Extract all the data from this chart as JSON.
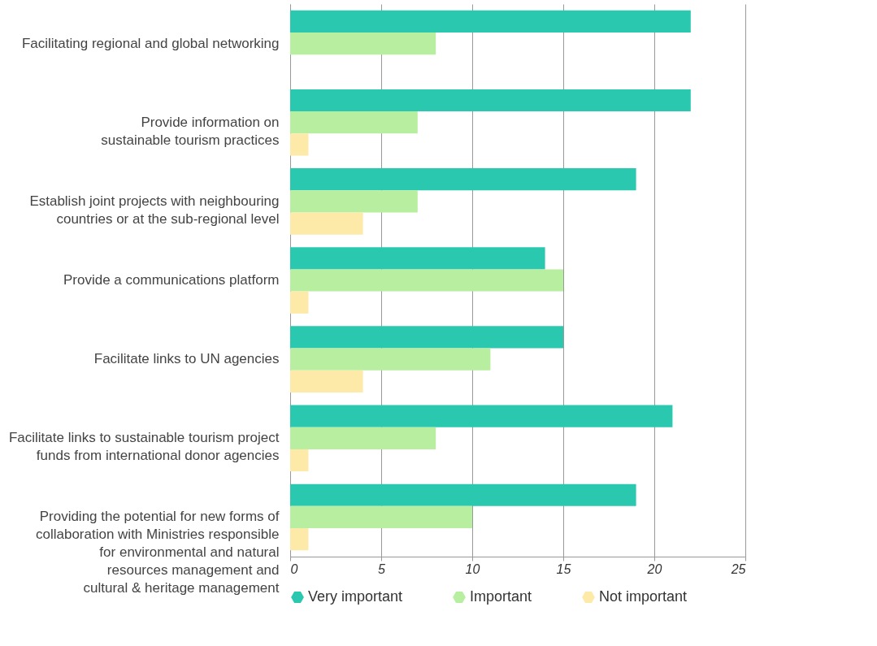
{
  "chart_data": {
    "type": "bar",
    "orientation": "horizontal",
    "categories": [
      "Facilitating regional and global networking",
      "Provide information on\nsustainable tourism practices",
      "Establish joint projects with neighbouring\ncountries or at the sub-regional level",
      "Provide a communications platform",
      "Facilitate links to UN agencies",
      "Facilitate links to sustainable tourism project\nfunds from international donor agencies",
      "Providing the potential for new forms of\ncollaboration with Ministries responsible\nfor environmental and natural\nresources management and\ncultural & heritage management"
    ],
    "series": [
      {
        "name": "Very important",
        "color": "#2bc8b0",
        "values": [
          22,
          22,
          19,
          14,
          15,
          21,
          19
        ]
      },
      {
        "name": "Important",
        "color": "#b8eea0",
        "values": [
          8,
          7,
          7,
          15,
          11,
          8,
          10
        ]
      },
      {
        "name": "Not important",
        "color": "#fde9a8",
        "values": [
          0,
          1,
          4,
          1,
          4,
          1,
          1
        ]
      }
    ],
    "xlim": [
      0,
      25
    ],
    "xticks": [
      0,
      5,
      10,
      15,
      20,
      25
    ],
    "grid": "x",
    "legend": "bottom"
  }
}
